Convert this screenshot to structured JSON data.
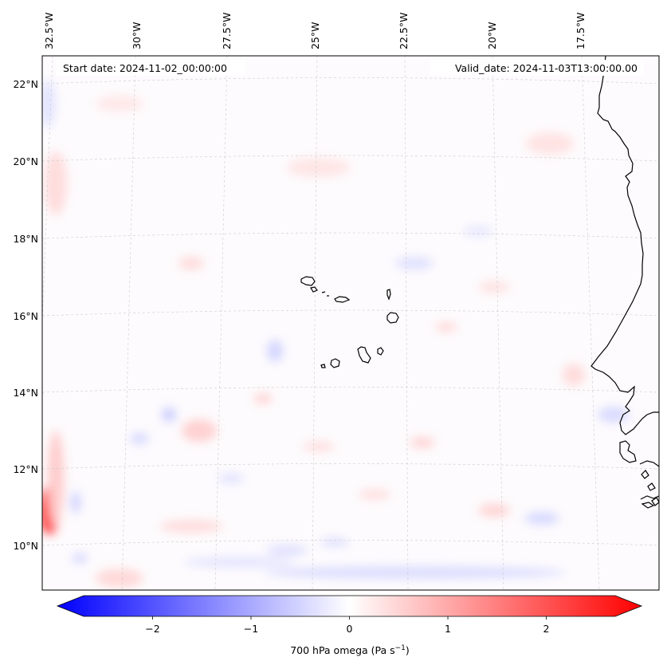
{
  "map": {
    "start_date": "Start date: 2024-11-02_00:00:00",
    "valid_date": "Valid_date: 2024-11-03T13:00:00.00",
    "lon_labels": [
      "32.5°W",
      "30°W",
      "27.5°W",
      "25°W",
      "22.5°W",
      "20°W",
      "17.5°W"
    ],
    "lat_labels": [
      "22°N",
      "20°N",
      "18°N",
      "16°N",
      "14°N",
      "12°N",
      "10°N"
    ],
    "colorbar": {
      "ticks": [
        "−2",
        "−1",
        "0",
        "1",
        "2"
      ],
      "label": "700 hPa omega (Pa s",
      "label_sup": "−1",
      "label_end": ")",
      "min": -2.7,
      "max": 2.7,
      "colormap": "bwr",
      "neg_color": "#0000ff",
      "mid_color": "#ffffff",
      "pos_color": "#ff0000"
    },
    "gridlines": "dashed-light-gray",
    "coastline_color": "#000000"
  }
}
